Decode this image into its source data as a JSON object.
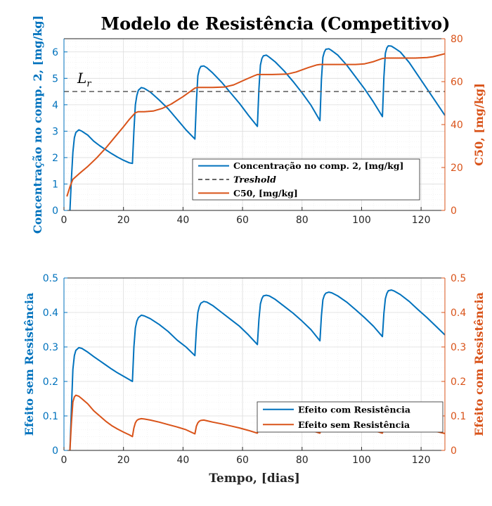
{
  "figure": {
    "title": "Modelo de Resistência (Competitivo)"
  },
  "colors": {
    "blue": "#0072BD",
    "orange": "#D95319",
    "gray": "#666666",
    "grid": "#dcdcdc",
    "axis": "#262626"
  },
  "chart_data": [
    {
      "type": "line",
      "title": "Modelo de Resistência (Competitivo)",
      "xlabel": "",
      "xlim": [
        0,
        128
      ],
      "xticks": [
        0,
        20,
        40,
        60,
        80,
        100,
        120
      ],
      "ylabel_left": "Concentração no comp. 2, [mg/kg]",
      "ylim_left": [
        0,
        6.5
      ],
      "yticks_left": [
        0,
        1,
        2,
        3,
        4,
        5,
        6
      ],
      "ylabel_right": "C50, [mg/kg]",
      "ylim_right": [
        0,
        80
      ],
      "yticks_right": [
        0,
        20,
        40,
        60,
        80
      ],
      "grid": true,
      "legend_position": "lower-right",
      "annotation": "L_r",
      "series": [
        {
          "name": "Concentração no comp. 2, [mg/kg]",
          "axis": "left",
          "style": "solid",
          "color": "blue",
          "x": [
            2.0,
            2.5,
            3.0,
            3.5,
            4.0,
            5.0,
            6.0,
            8.0,
            10.0,
            12.0,
            14.0,
            16.0,
            18.0,
            20.0,
            22.0,
            23.0,
            23.5,
            24.0,
            24.5,
            25.0,
            26.0,
            27.0,
            29.0,
            32.0,
            35.0,
            38.0,
            41.0,
            44.0,
            44.5,
            45.0,
            45.5,
            46.0,
            47.0,
            48.0,
            50.0,
            53.0,
            56.0,
            59.0,
            62.0,
            65.0,
            65.5,
            66.0,
            66.5,
            67.0,
            68.0,
            69.0,
            71.0,
            74.0,
            77.0,
            80.0,
            83.0,
            86.0,
            86.5,
            87.0,
            87.5,
            88.0,
            89.0,
            90.0,
            92.0,
            95.0,
            98.0,
            101.0,
            104.0,
            107.0,
            107.5,
            108.0,
            108.5,
            109.0,
            110.0,
            111.0,
            113.0,
            116.0,
            119.0,
            122.0,
            125.0,
            128.0
          ],
          "y": [
            0.0,
            1.2,
            2.2,
            2.75,
            2.95,
            3.05,
            3.0,
            2.85,
            2.62,
            2.45,
            2.3,
            2.15,
            2.02,
            1.9,
            1.8,
            1.78,
            3.0,
            4.0,
            4.35,
            4.55,
            4.65,
            4.62,
            4.48,
            4.18,
            3.85,
            3.45,
            3.05,
            2.7,
            4.1,
            5.1,
            5.35,
            5.45,
            5.47,
            5.4,
            5.2,
            4.85,
            4.45,
            4.05,
            3.6,
            3.18,
            4.6,
            5.5,
            5.75,
            5.85,
            5.88,
            5.8,
            5.62,
            5.28,
            4.88,
            4.45,
            3.98,
            3.4,
            4.95,
            5.8,
            6.0,
            6.1,
            6.12,
            6.05,
            5.88,
            5.5,
            5.05,
            4.6,
            4.1,
            3.55,
            5.05,
            5.95,
            6.15,
            6.23,
            6.22,
            6.15,
            6.0,
            5.6,
            5.1,
            4.6,
            4.1,
            3.6
          ]
        },
        {
          "name": "Treshold",
          "axis": "left",
          "style": "dashed",
          "color": "gray",
          "x": [
            0,
            128
          ],
          "y": [
            4.5,
            4.5
          ]
        },
        {
          "name": "C50, [mg/kg]",
          "axis": "right",
          "style": "solid",
          "color": "orange",
          "x": [
            1.0,
            2.0,
            3.0,
            5.0,
            8.0,
            11.0,
            14.0,
            17.0,
            20.0,
            22.0,
            24.0,
            25.0,
            27.0,
            30.0,
            33.0,
            36.0,
            40.0,
            44.0,
            45.0,
            46.0,
            50.0,
            54.0,
            57.0,
            61.0,
            64.0,
            65.0,
            66.0,
            70.0,
            75.0,
            78.0,
            82.0,
            85.0,
            86.0,
            87.0,
            90.0,
            98.0,
            101.0,
            104.0,
            106.0,
            107.0,
            108.0,
            110.0,
            118.0,
            122.0,
            124.0,
            126.0,
            128.0
          ],
          "y": [
            6.5,
            11.0,
            14.5,
            17.0,
            20.5,
            24.5,
            29.0,
            34.0,
            39.0,
            42.5,
            45.5,
            46.0,
            46.0,
            46.3,
            47.5,
            49.5,
            53.0,
            57.0,
            57.3,
            57.3,
            57.3,
            57.5,
            58.5,
            61.0,
            62.8,
            63.3,
            63.3,
            63.3,
            63.5,
            64.5,
            66.5,
            67.8,
            68.0,
            68.0,
            68.0,
            68.0,
            68.3,
            69.3,
            70.3,
            70.8,
            71.0,
            71.0,
            71.0,
            71.2,
            71.6,
            72.3,
            73.0
          ]
        }
      ],
      "legend": [
        "Concentração no comp. 2, [mg/kg]",
        "Treshold",
        "C50, [mg/kg]"
      ]
    },
    {
      "type": "line",
      "title": "",
      "xlabel": "Tempo, [dias]",
      "xlim": [
        0,
        128
      ],
      "xticks": [
        0,
        20,
        40,
        60,
        80,
        100,
        120
      ],
      "ylabel_left": "Efeito sem Resistência",
      "ylim_left": [
        0,
        0.5
      ],
      "yticks_left": [
        0,
        0.1,
        0.2,
        0.3,
        0.4,
        0.5
      ],
      "ylabel_right": "Efeito com Resistência",
      "ylim_right": [
        0,
        0.5
      ],
      "yticks_right": [
        0,
        0.1,
        0.2,
        0.3,
        0.4,
        0.5
      ],
      "grid": true,
      "legend_position": "right",
      "series": [
        {
          "name": "Efeito com Resistência",
          "axis": "left",
          "style": "solid",
          "color": "blue",
          "x": [
            2.0,
            2.5,
            3.0,
            3.5,
            4.0,
            5.0,
            6.0,
            8.0,
            10.0,
            12.0,
            14.0,
            16.0,
            18.0,
            20.0,
            22.0,
            23.0,
            23.5,
            24.0,
            24.5,
            25.0,
            26.0,
            27.0,
            29.0,
            32.0,
            35.0,
            38.0,
            41.0,
            44.0,
            44.5,
            45.0,
            45.5,
            46.0,
            47.0,
            48.0,
            50.0,
            53.0,
            56.0,
            59.0,
            62.0,
            65.0,
            65.5,
            66.0,
            66.5,
            67.0,
            68.0,
            69.0,
            71.0,
            74.0,
            77.0,
            80.0,
            83.0,
            86.0,
            86.5,
            87.0,
            87.5,
            88.0,
            89.0,
            90.0,
            92.0,
            95.0,
            98.0,
            101.0,
            104.0,
            107.0,
            107.5,
            108.0,
            108.5,
            109.0,
            110.0,
            111.0,
            113.0,
            116.0,
            119.0,
            122.0,
            125.0,
            128.0
          ],
          "y": [
            0.0,
            0.12,
            0.235,
            0.275,
            0.29,
            0.298,
            0.296,
            0.285,
            0.272,
            0.26,
            0.248,
            0.236,
            0.225,
            0.215,
            0.205,
            0.2,
            0.3,
            0.355,
            0.375,
            0.385,
            0.392,
            0.39,
            0.382,
            0.365,
            0.345,
            0.32,
            0.3,
            0.275,
            0.35,
            0.4,
            0.418,
            0.427,
            0.432,
            0.43,
            0.42,
            0.4,
            0.38,
            0.36,
            0.335,
            0.307,
            0.38,
            0.425,
            0.44,
            0.448,
            0.45,
            0.448,
            0.438,
            0.418,
            0.398,
            0.375,
            0.35,
            0.318,
            0.39,
            0.437,
            0.45,
            0.456,
            0.459,
            0.457,
            0.448,
            0.43,
            0.408,
            0.385,
            0.36,
            0.33,
            0.398,
            0.44,
            0.455,
            0.463,
            0.465,
            0.462,
            0.452,
            0.432,
            0.408,
            0.385,
            0.36,
            0.335
          ]
        },
        {
          "name": "Efeito sem Resistência",
          "axis": "right",
          "style": "solid",
          "color": "orange",
          "x": [
            2.0,
            2.5,
            3.0,
            3.5,
            4.0,
            5.0,
            6.0,
            8.0,
            10.0,
            12.0,
            14.0,
            16.0,
            18.0,
            20.0,
            22.0,
            23.0,
            23.5,
            24.0,
            24.5,
            25.0,
            26.0,
            27.0,
            29.0,
            32.0,
            35.0,
            38.0,
            41.0,
            44.0,
            44.5,
            45.0,
            45.5,
            46.0,
            47.0,
            48.0,
            50.0,
            53.0,
            56.0,
            59.0,
            62.0,
            65.0,
            65.5,
            66.0,
            66.5,
            67.0,
            68.0,
            69.0,
            71.0,
            74.0,
            77.0,
            80.0,
            83.0,
            86.0,
            86.5,
            87.0,
            87.5,
            88.0,
            89.0,
            90.0,
            92.0,
            95.0,
            98.0,
            101.0,
            104.0,
            107.0,
            107.5,
            108.0,
            108.5,
            109.0,
            110.0,
            111.0,
            113.0,
            116.0,
            119.0,
            122.0,
            125.0,
            128.0
          ],
          "y": [
            0.0,
            0.08,
            0.14,
            0.155,
            0.16,
            0.157,
            0.15,
            0.135,
            0.115,
            0.1,
            0.085,
            0.072,
            0.062,
            0.053,
            0.045,
            0.04,
            0.065,
            0.08,
            0.087,
            0.09,
            0.092,
            0.091,
            0.088,
            0.082,
            0.075,
            0.068,
            0.06,
            0.048,
            0.07,
            0.08,
            0.085,
            0.087,
            0.088,
            0.086,
            0.082,
            0.077,
            0.071,
            0.065,
            0.058,
            0.05,
            0.07,
            0.079,
            0.083,
            0.085,
            0.085,
            0.084,
            0.081,
            0.076,
            0.07,
            0.064,
            0.058,
            0.05,
            0.07,
            0.078,
            0.082,
            0.084,
            0.084,
            0.083,
            0.08,
            0.075,
            0.07,
            0.064,
            0.058,
            0.05,
            0.07,
            0.078,
            0.081,
            0.082,
            0.082,
            0.081,
            0.078,
            0.073,
            0.067,
            0.061,
            0.055,
            0.049
          ]
        }
      ],
      "legend": [
        "Efeito com Resistência",
        "Efeito sem Resistência"
      ]
    }
  ]
}
